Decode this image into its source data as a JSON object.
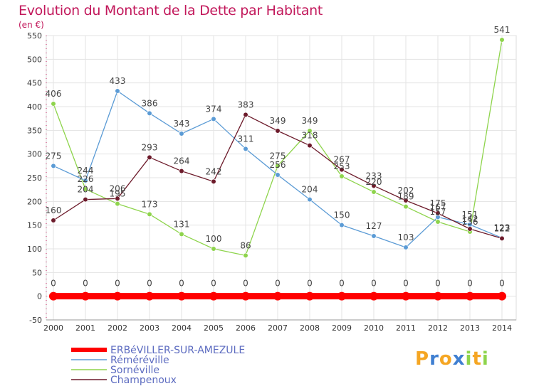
{
  "chart_data": {
    "type": "line",
    "title": "Evolution du Montant de la Dette par Habitant",
    "subtitle": "(en €)",
    "x": [
      "2000",
      "2001",
      "2002",
      "2003",
      "2004",
      "2005",
      "2006",
      "2007",
      "2008",
      "2009",
      "2010",
      "2011",
      "2012",
      "2013",
      "2014"
    ],
    "yticks": [
      "-50",
      "0",
      "50",
      "100",
      "150",
      "200",
      "250",
      "300",
      "350",
      "400",
      "450",
      "500",
      "550"
    ],
    "ylim": [
      -50,
      550
    ],
    "grid": true,
    "legend_position": "bottom-left",
    "series": [
      {
        "name": "ERBéVILLER-SUR-AMEZULE",
        "color": "#ff0000",
        "values": [
          0,
          0,
          0,
          0,
          0,
          0,
          0,
          0,
          0,
          0,
          0,
          0,
          0,
          0,
          0
        ],
        "labels": [
          "0",
          "0",
          "0",
          "0",
          "0",
          "0",
          "0",
          "0",
          "0",
          "0",
          "0",
          "0",
          "0",
          "0",
          "0"
        ]
      },
      {
        "name": "Réméréville",
        "color": "#5b9bd5",
        "values": [
          275,
          244,
          433,
          386,
          343,
          374,
          311,
          256,
          204,
          150,
          127,
          103,
          167,
          151,
          123
        ],
        "labels": [
          "275",
          "244",
          "433",
          "386",
          "343",
          "374",
          "311",
          "256",
          "204",
          "150",
          "127",
          "103",
          "167",
          "151",
          "123"
        ]
      },
      {
        "name": "Sornéville",
        "color": "#8ed44c",
        "values": [
          406,
          226,
          195,
          173,
          131,
          100,
          86,
          275,
          349,
          253,
          220,
          189,
          157,
          136,
          541
        ],
        "labels": [
          "406",
          "226",
          "195",
          "173",
          "131",
          "100",
          "86",
          "275",
          "349",
          "253",
          "220",
          "189",
          "157",
          "136",
          "541"
        ]
      },
      {
        "name": "Champenoux",
        "color": "#6d1b2b",
        "values": [
          160,
          204,
          206,
          293,
          264,
          242,
          383,
          349,
          318,
          267,
          233,
          202,
          175,
          142,
          122
        ],
        "labels": [
          "160",
          "204",
          "206",
          "293",
          "264",
          "242",
          "383",
          "349",
          "318",
          "267",
          "233",
          "202",
          "175",
          "142",
          "122"
        ]
      }
    ]
  },
  "logo": {
    "text": "Proxiti",
    "letters": [
      "P",
      "r",
      "o",
      "x",
      "i",
      "t",
      "i"
    ],
    "colors": [
      "#f5a623",
      "#3f7fd1",
      "#f5a623",
      "#3f7fd1",
      "#8ed44c",
      "#f5a623",
      "#8ed44c"
    ]
  }
}
